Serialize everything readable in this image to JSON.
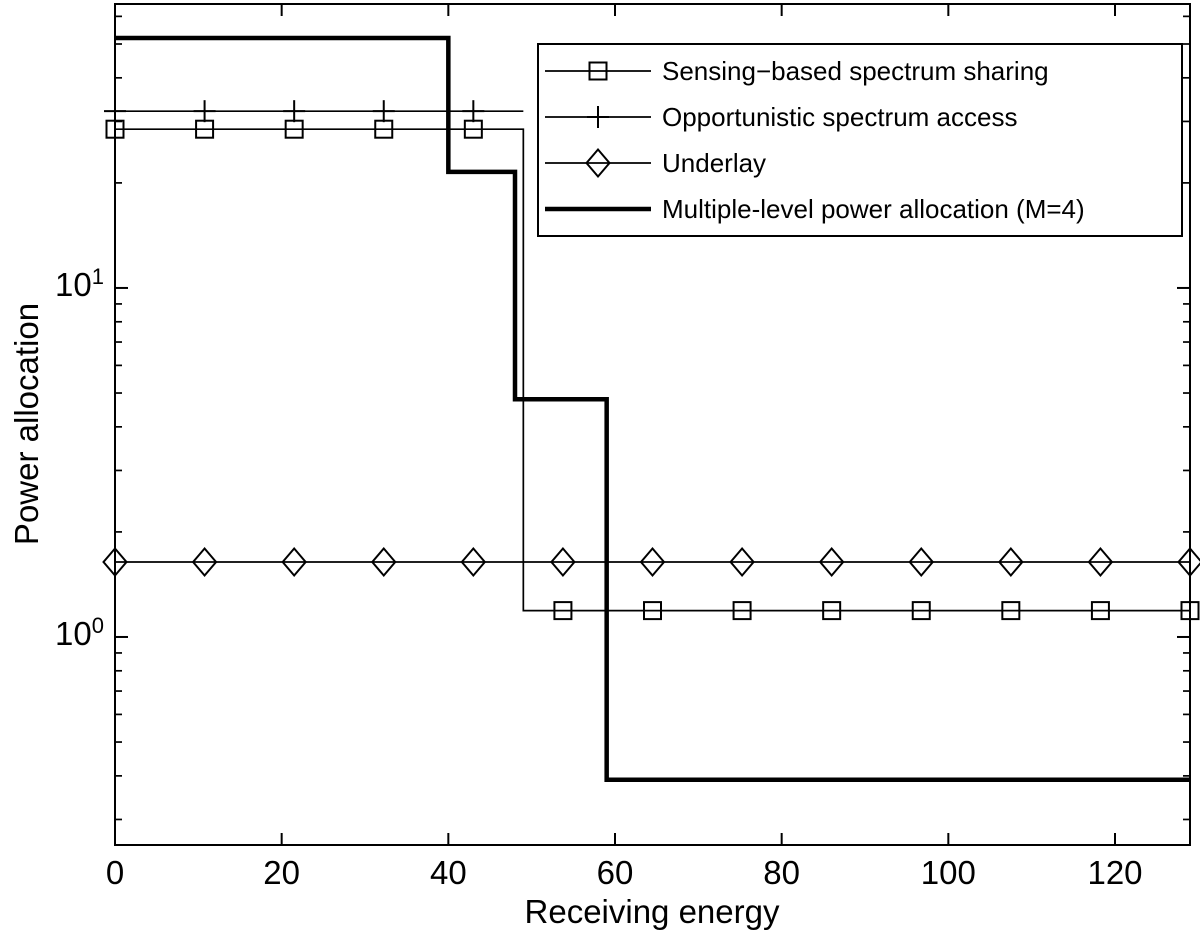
{
  "figure": {
    "background_color": "#ffffff",
    "foreground_color": "#000000"
  },
  "chart_data": {
    "type": "line",
    "title": "",
    "xlabel": "Receiving energy",
    "ylabel": "Power allocation",
    "grid": false,
    "x_axis": {
      "scale": "linear",
      "min": 0,
      "max": 129,
      "ticks": [
        0,
        20,
        40,
        60,
        80,
        100,
        120
      ]
    },
    "y_axis": {
      "scale": "log",
      "min": 0.2535,
      "max": 65.1,
      "major_ticks": [
        {
          "value": 1,
          "base": "10",
          "exponent": "0"
        },
        {
          "value": 10,
          "base": "10",
          "exponent": "1"
        }
      ],
      "minor_ticks": [
        0.3,
        0.4,
        0.5,
        0.6,
        0.7,
        0.8,
        0.9,
        2,
        3,
        4,
        5,
        6,
        7,
        8,
        9,
        20,
        30,
        40,
        50,
        60
      ]
    },
    "legend": {
      "position": "top-right",
      "border": true
    },
    "series": [
      {
        "id": "sensing-based-spectrum-sharing",
        "name": "Sensing−based spectrum sharing",
        "marker": "square",
        "line_width": 1.7,
        "line": [
          [
            0,
            28.5
          ],
          [
            49,
            28.5
          ],
          [
            49,
            1.19
          ],
          [
            129,
            1.19
          ]
        ],
        "markers": [
          [
            0,
            28.5
          ],
          [
            10.75,
            28.5
          ],
          [
            21.5,
            28.5
          ],
          [
            32.25,
            28.5
          ],
          [
            43,
            28.5
          ],
          [
            53.75,
            1.19
          ],
          [
            64.5,
            1.19
          ],
          [
            75.25,
            1.19
          ],
          [
            86,
            1.19
          ],
          [
            96.75,
            1.19
          ],
          [
            107.5,
            1.19
          ],
          [
            118.25,
            1.19
          ],
          [
            129,
            1.19
          ]
        ]
      },
      {
        "id": "opportunistic-spectrum-access",
        "name": "Opportunistic spectrum access",
        "marker": "plus",
        "line_width": 1.7,
        "line": [
          [
            0,
            32.1
          ],
          [
            49,
            32.1
          ]
        ],
        "markers": [
          [
            0,
            32.1
          ],
          [
            10.75,
            32.1
          ],
          [
            21.5,
            32.1
          ],
          [
            32.25,
            32.1
          ],
          [
            43,
            32.1
          ]
        ]
      },
      {
        "id": "underlay",
        "name": "Underlay",
        "marker": "diamond",
        "line_width": 1.7,
        "line": [
          [
            0,
            1.64
          ],
          [
            129,
            1.64
          ]
        ],
        "markers": [
          [
            0,
            1.64
          ],
          [
            10.75,
            1.64
          ],
          [
            21.5,
            1.64
          ],
          [
            32.25,
            1.64
          ],
          [
            43,
            1.64
          ],
          [
            53.75,
            1.64
          ],
          [
            64.5,
            1.64
          ],
          [
            75.25,
            1.64
          ],
          [
            86,
            1.64
          ],
          [
            96.75,
            1.64
          ],
          [
            107.5,
            1.64
          ],
          [
            118.25,
            1.64
          ],
          [
            129,
            1.64
          ]
        ]
      },
      {
        "id": "multiple-level-power-allocation",
        "name": "Multiple-level power allocation (M=4)",
        "marker": "none",
        "line_width": 4.5,
        "line": [
          [
            0,
            52
          ],
          [
            40,
            52
          ],
          [
            40,
            21.5
          ],
          [
            48,
            21.5
          ],
          [
            48,
            4.8
          ],
          [
            59,
            4.8
          ],
          [
            59,
            0.39
          ],
          [
            129,
            0.39
          ]
        ],
        "markers": []
      }
    ]
  }
}
